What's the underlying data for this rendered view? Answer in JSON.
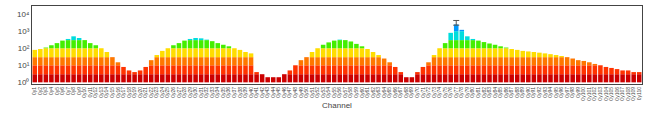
{
  "chart_data": {
    "type": "bar",
    "xlabel": "Channel",
    "categories": [
      "0y1",
      "0y2",
      "0y3",
      "0y4",
      "0y5",
      "0y6",
      "0y7",
      "0y8",
      "0y9",
      "0y10",
      "0y11",
      "0y12",
      "0y13",
      "0y14",
      "0y15",
      "0y16",
      "0y17",
      "0y18",
      "0y19",
      "0y20",
      "0y21",
      "0y22",
      "0y23",
      "0y24",
      "0y25",
      "0y26",
      "0y27",
      "0y28",
      "0y29",
      "0y30",
      "0y31",
      "0y32",
      "0y33",
      "0y34",
      "0y35",
      "0y36",
      "0y37",
      "0y38",
      "0y39",
      "0y40",
      "0y41",
      "0y42",
      "0y43",
      "0y44",
      "0y45",
      "0y46",
      "0y47",
      "0y48",
      "0y49",
      "0y50",
      "0y51",
      "0y52",
      "0y53",
      "0y54",
      "0y55",
      "0y56",
      "0y57",
      "0y58",
      "0y59",
      "0y60",
      "0y61",
      "0y62",
      "0y63",
      "0y64",
      "0y65",
      "0y66",
      "0y67",
      "0y68",
      "0y69",
      "0y70",
      "0y71",
      "0y72",
      "0y73",
      "0y74",
      "0y75",
      "0y76",
      "0y77",
      "0y78",
      "0y79",
      "0y80",
      "0y81",
      "0y82",
      "0y83",
      "0y84",
      "0y85",
      "0y86",
      "0y87",
      "0y88",
      "0y89",
      "0y90",
      "0y91",
      "0y92",
      "0y93",
      "0y94",
      "0y95",
      "0y96",
      "0y97",
      "0y98",
      "0y99",
      "0y100",
      "0y101",
      "0y102",
      "0y103",
      "0y104",
      "0y105",
      "0y106",
      "0y107",
      "0y108",
      "0y109",
      "0y110"
    ],
    "series": [
      {
        "color": "#cc0000",
        "base": 1,
        "values": [
          2,
          2,
          2,
          2,
          2,
          2,
          2,
          2,
          2,
          2,
          2,
          2,
          2,
          2,
          2,
          2,
          2,
          2,
          2,
          2,
          2,
          2,
          2,
          2,
          2,
          2,
          2,
          2,
          2,
          2,
          2,
          2,
          2,
          2,
          2,
          2,
          2,
          2,
          2,
          2,
          2,
          2,
          1,
          1,
          1,
          2,
          2,
          2,
          2,
          2,
          2,
          2,
          2,
          2,
          2,
          2,
          2,
          2,
          2,
          2,
          2,
          2,
          2,
          2,
          2,
          2,
          2,
          1,
          1,
          2,
          2,
          2,
          2,
          2,
          2,
          2,
          2,
          2,
          2,
          2,
          2,
          2,
          2,
          2,
          2,
          2,
          2,
          2,
          2,
          2,
          2,
          2,
          2,
          2,
          2,
          2,
          2,
          2,
          2,
          2,
          2,
          2,
          2,
          2,
          2,
          2,
          2,
          2,
          2,
          2
        ]
      },
      {
        "color": "#ff3300",
        "base": 3,
        "values": [
          7,
          7,
          7,
          7,
          7,
          7,
          7,
          7,
          7,
          7,
          7,
          7,
          7,
          7,
          7,
          7,
          5,
          2,
          1,
          2,
          5,
          7,
          7,
          7,
          7,
          7,
          7,
          7,
          7,
          7,
          7,
          7,
          7,
          7,
          7,
          7,
          7,
          7,
          7,
          7,
          1,
          null,
          null,
          null,
          null,
          null,
          2,
          7,
          7,
          7,
          7,
          7,
          7,
          7,
          7,
          7,
          7,
          7,
          7,
          7,
          7,
          7,
          7,
          7,
          7,
          5,
          1,
          null,
          null,
          1,
          5,
          7,
          7,
          7,
          7,
          7,
          7,
          7,
          7,
          7,
          7,
          7,
          7,
          7,
          7,
          7,
          7,
          7,
          7,
          7,
          7,
          7,
          7,
          7,
          7,
          7,
          7,
          7,
          7,
          7,
          7,
          7,
          7,
          5,
          4,
          3,
          2,
          2,
          1,
          1
        ]
      },
      {
        "color": "#ff7700",
        "base": 10,
        "values": [
          20,
          20,
          20,
          20,
          20,
          20,
          20,
          20,
          20,
          20,
          20,
          20,
          20,
          20,
          20,
          5,
          null,
          null,
          null,
          null,
          null,
          10,
          20,
          20,
          20,
          20,
          20,
          20,
          20,
          20,
          20,
          20,
          20,
          20,
          20,
          20,
          20,
          20,
          20,
          20,
          null,
          null,
          null,
          null,
          null,
          null,
          null,
          null,
          10,
          20,
          20,
          20,
          20,
          20,
          20,
          20,
          20,
          20,
          20,
          20,
          20,
          20,
          20,
          15,
          5,
          null,
          null,
          null,
          null,
          null,
          null,
          5,
          20,
          20,
          20,
          20,
          20,
          20,
          20,
          20,
          20,
          20,
          20,
          20,
          20,
          20,
          20,
          20,
          20,
          20,
          20,
          20,
          20,
          20,
          20,
          20,
          20,
          15,
          10,
          8,
          5,
          2,
          null,
          null,
          null,
          null,
          null,
          null,
          null,
          null
        ]
      },
      {
        "color": "#ffdd00",
        "base": 30,
        "values": [
          50,
          60,
          70,
          70,
          70,
          70,
          70,
          70,
          70,
          70,
          70,
          70,
          70,
          30,
          null,
          null,
          null,
          null,
          null,
          null,
          null,
          null,
          10,
          40,
          70,
          70,
          70,
          70,
          70,
          70,
          70,
          70,
          70,
          70,
          70,
          70,
          70,
          50,
          30,
          20,
          null,
          null,
          null,
          null,
          null,
          null,
          null,
          null,
          null,
          null,
          30,
          70,
          70,
          70,
          70,
          70,
          70,
          70,
          70,
          70,
          60,
          30,
          10,
          null,
          null,
          null,
          null,
          null,
          null,
          null,
          null,
          null,
          10,
          70,
          70,
          70,
          70,
          70,
          70,
          70,
          70,
          70,
          70,
          70,
          70,
          70,
          60,
          50,
          40,
          35,
          30,
          25,
          20,
          15,
          10,
          5,
          null,
          null,
          null,
          null,
          null,
          null,
          null,
          null,
          null,
          null,
          null,
          null,
          null,
          null
        ]
      },
      {
        "color": "#44ee00",
        "base": 100,
        "values": [
          null,
          null,
          10,
          50,
          100,
          180,
          200,
          200,
          200,
          200,
          100,
          50,
          null,
          null,
          null,
          null,
          null,
          null,
          null,
          null,
          null,
          null,
          null,
          null,
          null,
          50,
          100,
          180,
          200,
          200,
          200,
          200,
          160,
          100,
          60,
          30,
          null,
          null,
          null,
          null,
          null,
          null,
          null,
          null,
          null,
          null,
          null,
          null,
          null,
          null,
          null,
          null,
          60,
          120,
          180,
          200,
          200,
          150,
          80,
          30,
          null,
          null,
          null,
          null,
          null,
          null,
          null,
          null,
          null,
          null,
          null,
          null,
          null,
          null,
          100,
          200,
          200,
          200,
          200,
          200,
          180,
          130,
          90,
          60,
          30,
          10,
          null,
          null,
          null,
          null,
          null,
          null,
          null,
          null,
          null,
          null,
          null,
          null,
          null,
          null,
          null,
          null,
          null,
          null,
          null,
          null,
          null,
          null,
          null,
          null
        ]
      },
      {
        "color": "#00dddd",
        "base": 300,
        "values": [
          null,
          null,
          null,
          null,
          null,
          null,
          50,
          200,
          100,
          null,
          null,
          null,
          null,
          null,
          null,
          null,
          null,
          null,
          null,
          null,
          null,
          null,
          null,
          null,
          null,
          null,
          null,
          null,
          50,
          100,
          80,
          20,
          null,
          null,
          null,
          null,
          null,
          null,
          null,
          null,
          null,
          null,
          null,
          null,
          null,
          null,
          null,
          null,
          null,
          null,
          null,
          null,
          null,
          null,
          null,
          20,
          null,
          null,
          null,
          null,
          null,
          null,
          null,
          null,
          null,
          null,
          null,
          null,
          null,
          null,
          null,
          null,
          null,
          null,
          null,
          500,
          700,
          700,
          200,
          50,
          null,
          null,
          null,
          null,
          null,
          null,
          null,
          null,
          null,
          null,
          null,
          null,
          null,
          null,
          null,
          null,
          null,
          null,
          null,
          null,
          null,
          null,
          null,
          null,
          null,
          null,
          null,
          null,
          null,
          null
        ]
      },
      {
        "color": "#0099ff",
        "base": 1000,
        "values": [
          null,
          null,
          null,
          null,
          null,
          null,
          null,
          null,
          null,
          null,
          null,
          null,
          null,
          null,
          null,
          null,
          null,
          null,
          null,
          null,
          null,
          null,
          null,
          null,
          null,
          null,
          null,
          null,
          null,
          null,
          null,
          null,
          null,
          null,
          null,
          null,
          null,
          null,
          null,
          null,
          null,
          null,
          null,
          null,
          null,
          null,
          null,
          null,
          null,
          null,
          null,
          null,
          null,
          null,
          null,
          null,
          null,
          null,
          null,
          null,
          null,
          null,
          null,
          null,
          null,
          null,
          null,
          null,
          null,
          null,
          null,
          null,
          null,
          null,
          null,
          null,
          1500,
          200,
          null,
          null,
          null,
          null,
          null,
          null,
          null,
          null,
          null,
          null,
          null,
          null,
          null,
          null,
          null,
          null,
          null,
          null,
          null,
          null,
          null,
          null,
          null,
          null,
          null,
          null,
          null,
          null,
          null,
          null,
          null,
          null
        ]
      }
    ],
    "error_bar": {
      "category": "0y77",
      "value": 3250,
      "error": 1000,
      "color": "#555555"
    },
    "log": "y",
    "ylim": [
      0.8,
      30000
    ],
    "yticks": [
      {
        "value": 1,
        "label": "10⁰"
      },
      {
        "value": 10,
        "label": "10¹"
      },
      {
        "value": 100,
        "label": "10²"
      },
      {
        "value": 1000,
        "label": "10³"
      },
      {
        "value": 10000,
        "label": "10⁴"
      }
    ],
    "grid": false
  }
}
